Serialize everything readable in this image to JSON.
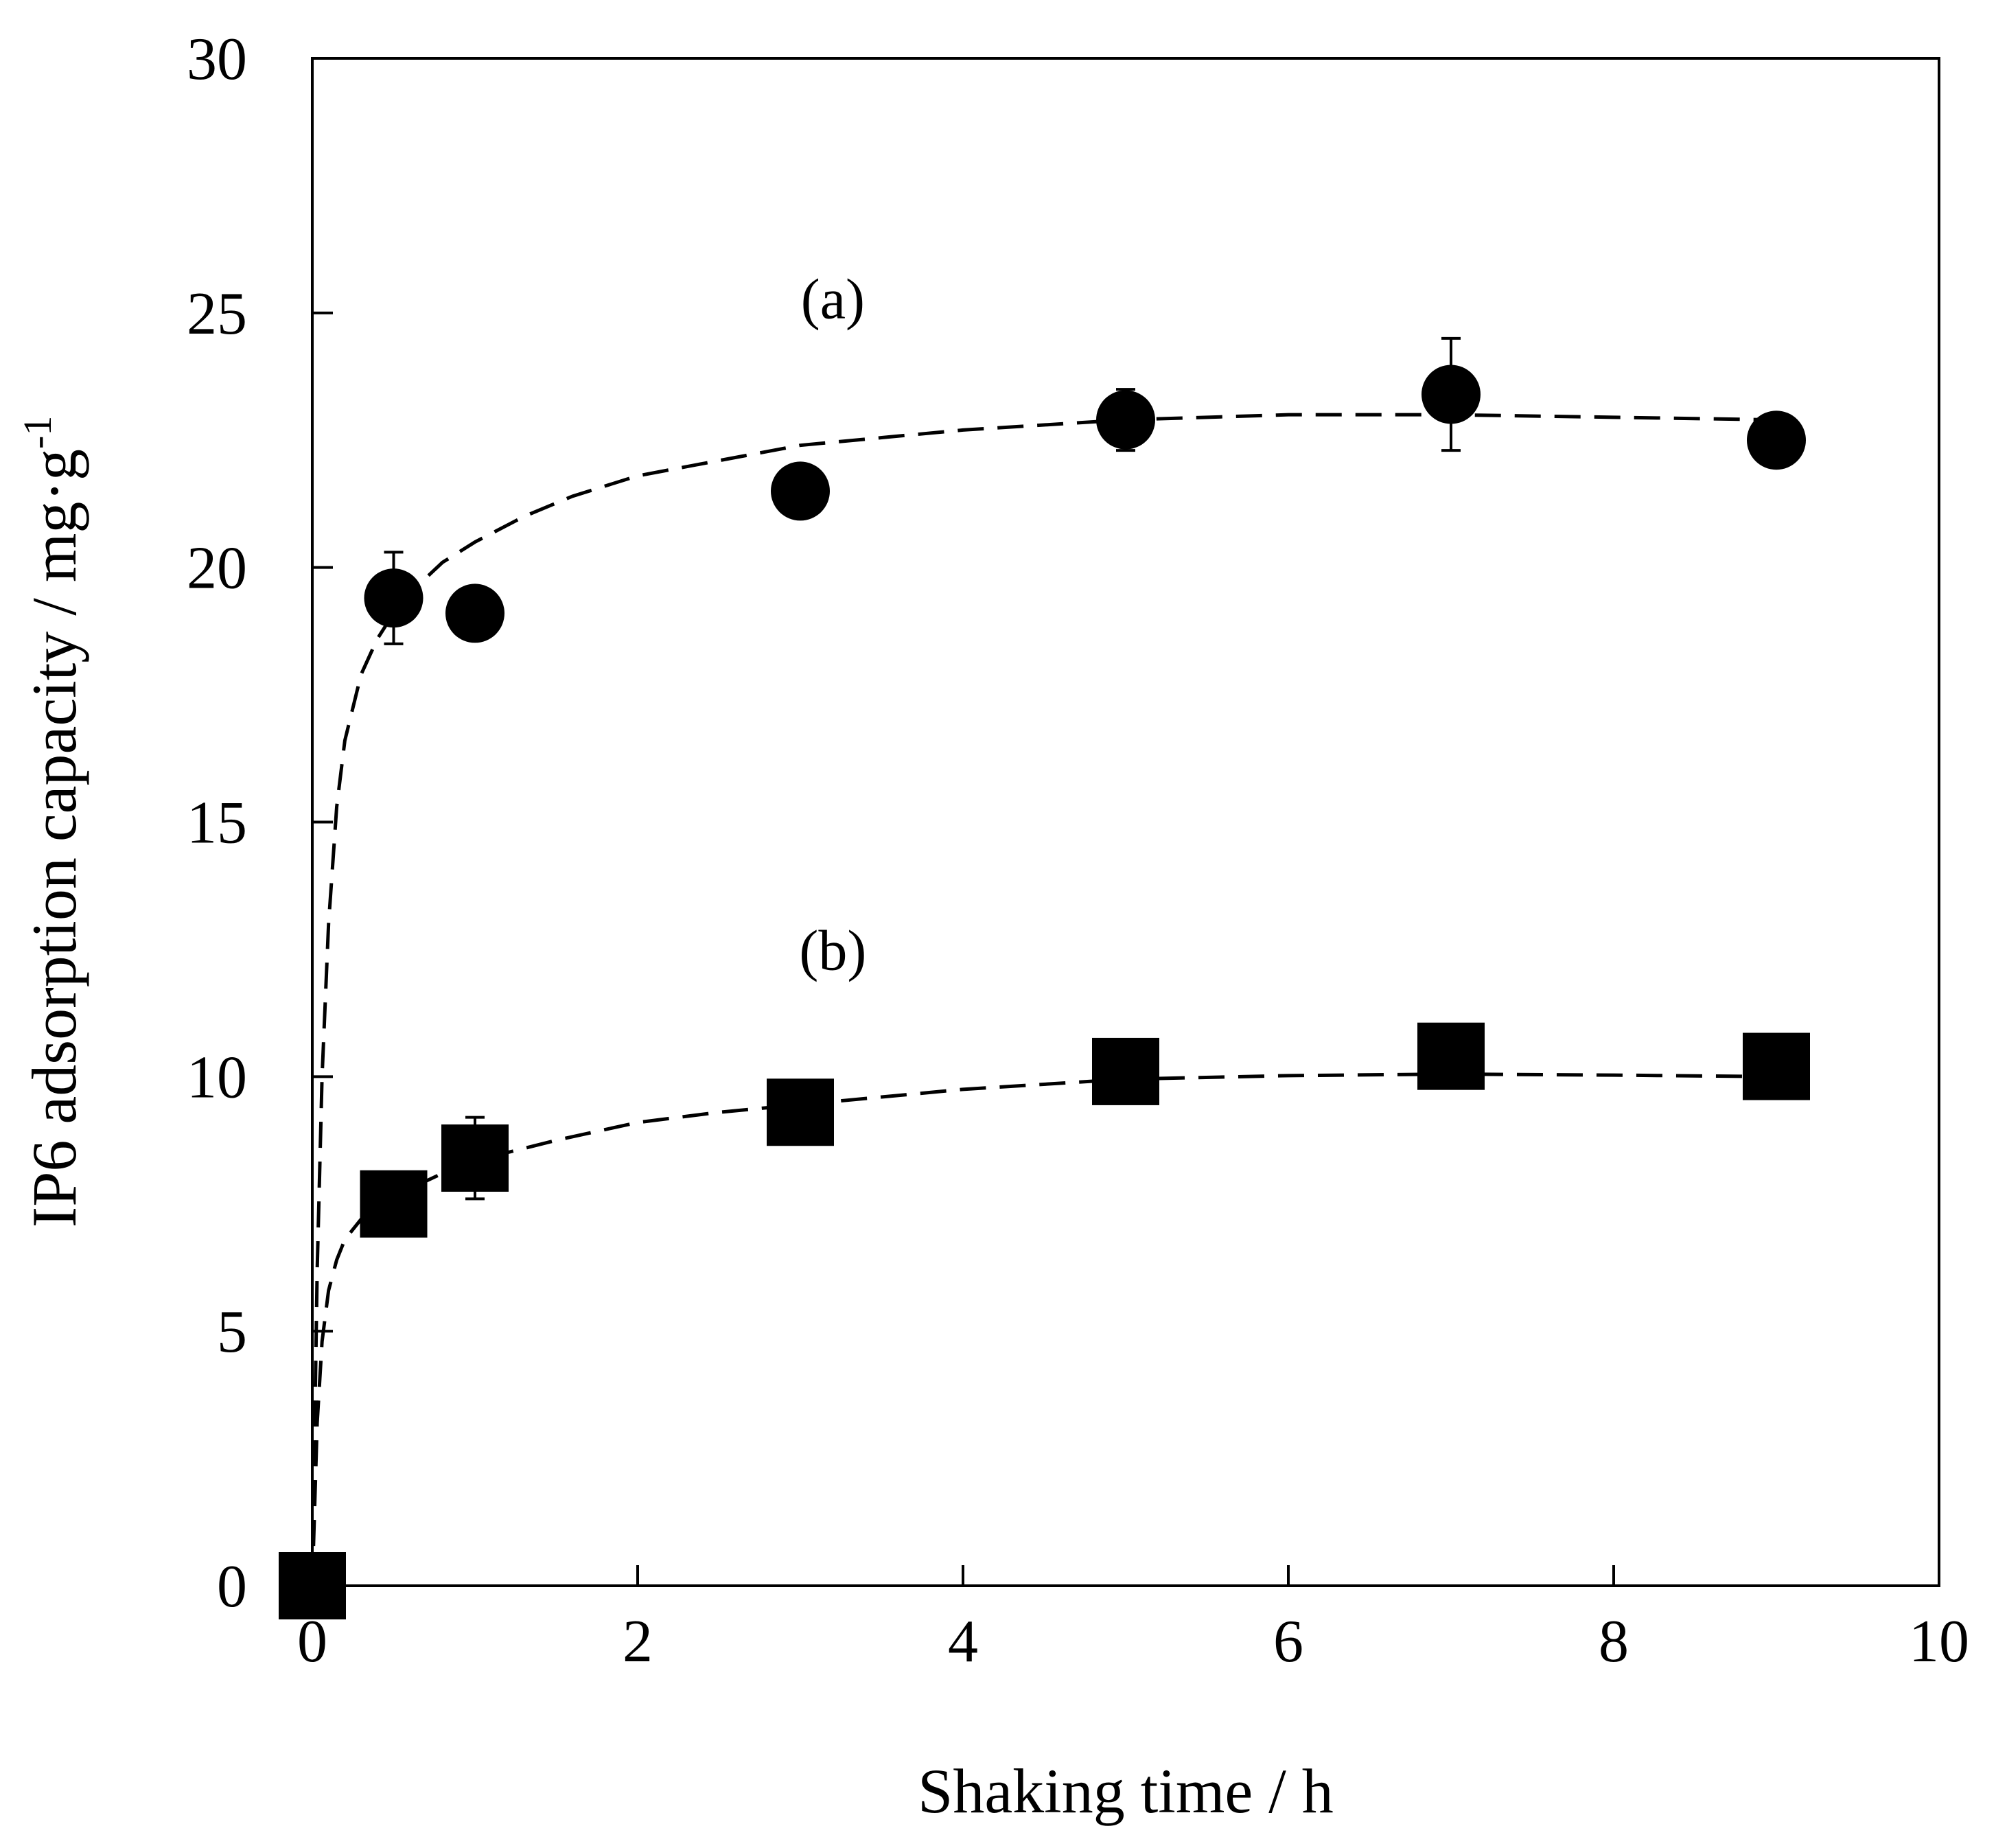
{
  "chart_data": {
    "type": "scatter",
    "title": "",
    "xlabel": "Shaking time / h",
    "ylabel": "IP6 adsorption capacity / mg·g",
    "ylabel_superscript": "-1",
    "xlim": [
      0,
      10
    ],
    "ylim": [
      0,
      30
    ],
    "xticks": [
      0,
      2,
      4,
      6,
      8,
      10
    ],
    "yticks": [
      0,
      5,
      10,
      15,
      20,
      25,
      30
    ],
    "grid": false,
    "series": [
      {
        "name": "(a)",
        "marker": "circle",
        "x": [
          0,
          0.5,
          1,
          3,
          5,
          7,
          9
        ],
        "y": [
          0,
          19.4,
          19.1,
          21.5,
          22.9,
          23.4,
          22.5
        ],
        "error": [
          0,
          0.9,
          0,
          0,
          0.6,
          1.1,
          0.5
        ],
        "fit": {
          "style": "dashed",
          "x": [
            0,
            0.03,
            0.06,
            0.1,
            0.15,
            0.2,
            0.3,
            0.4,
            0.5,
            0.6,
            0.8,
            1,
            1.3,
            1.6,
            2,
            2.5,
            3,
            3.5,
            4,
            5,
            6,
            7,
            8,
            9
          ],
          "y": [
            0,
            6.2,
            10.0,
            13.0,
            15.3,
            16.6,
            17.9,
            18.6,
            19.1,
            19.5,
            20.1,
            20.5,
            21.0,
            21.4,
            21.8,
            22.1,
            22.4,
            22.55,
            22.7,
            22.9,
            23.0,
            23.0,
            22.95,
            22.9
          ]
        }
      },
      {
        "name": "(b)",
        "marker": "square",
        "x": [
          0,
          0.5,
          1,
          3,
          5,
          7,
          9
        ],
        "y": [
          0,
          7.5,
          8.4,
          9.3,
          10.1,
          10.4,
          10.2
        ],
        "error": [
          0,
          0,
          0.8,
          0,
          0,
          0.6,
          0
        ],
        "fit": {
          "style": "dashed",
          "x": [
            0,
            0.03,
            0.06,
            0.1,
            0.15,
            0.2,
            0.3,
            0.4,
            0.5,
            0.6,
            0.8,
            1,
            1.5,
            2,
            2.5,
            3,
            4,
            5,
            6,
            7,
            8,
            9
          ],
          "y": [
            0,
            3.2,
            4.8,
            5.8,
            6.4,
            6.8,
            7.2,
            7.45,
            7.65,
            7.8,
            8.1,
            8.35,
            8.75,
            9.1,
            9.3,
            9.45,
            9.75,
            9.95,
            10.02,
            10.05,
            10.03,
            10.0
          ]
        }
      }
    ],
    "annotations": [
      {
        "text": "(a)",
        "x": 3.2,
        "y": 24.9
      },
      {
        "text": "(b)",
        "x": 3.2,
        "y": 12.1
      }
    ]
  }
}
